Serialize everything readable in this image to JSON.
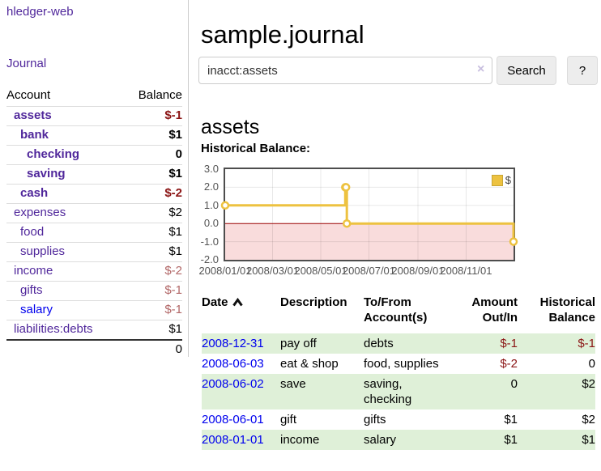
{
  "colors": {
    "link_purple": "#50279b",
    "link_blue": "#0000ee",
    "negative_strong": "#8b1515",
    "negative_muted": "#b26767",
    "row_stripe_green": "#dff0d8",
    "chart_gold": "#EDC240"
  },
  "sidebar": {
    "brand": "hledger-web",
    "nav_journal": "Journal",
    "accounts_table": {
      "headers": {
        "account": "Account",
        "balance": "Balance"
      },
      "rows": [
        {
          "name": "assets",
          "depth": 1,
          "bold": true,
          "balance": "$-1",
          "negative": "strong"
        },
        {
          "name": "bank",
          "depth": 2,
          "bold": true,
          "balance": "$1"
        },
        {
          "name": "checking",
          "depth": 3,
          "bold": true,
          "balance": "0"
        },
        {
          "name": "saving",
          "depth": 3,
          "bold": true,
          "balance": "$1"
        },
        {
          "name": "cash",
          "depth": 2,
          "bold": true,
          "balance": "$-2",
          "negative": "strong"
        },
        {
          "name": "expenses",
          "depth": 1,
          "bold": false,
          "balance": "$2"
        },
        {
          "name": "food",
          "depth": 2,
          "bold": false,
          "balance": "$1"
        },
        {
          "name": "supplies",
          "depth": 2,
          "bold": false,
          "balance": "$1"
        },
        {
          "name": "income",
          "depth": 1,
          "bold": false,
          "balance": "$-2",
          "negative": "muted"
        },
        {
          "name": "gifts",
          "depth": 2,
          "bold": false,
          "balance": "$-1",
          "negative": "muted"
        },
        {
          "name": "salary",
          "depth": 2,
          "bold": false,
          "balance": "$-1",
          "negative": "muted",
          "unvisited": true
        },
        {
          "name": "liabilities:debts",
          "depth": 1,
          "bold": false,
          "balance": "$1"
        }
      ],
      "total": "0"
    }
  },
  "header": {
    "title": "sample.journal"
  },
  "search": {
    "value": "inacct:assets",
    "clear_icon": "×",
    "button_label": "Search",
    "help_label": "?"
  },
  "register": {
    "heading": "assets",
    "chart_label": "Historical Balance:",
    "table": {
      "headers": {
        "date": "Date",
        "description": "Description",
        "accounts": "To/From Account(s)",
        "amount": "Amount Out/In",
        "balance": "Historical Balance"
      },
      "rows": [
        {
          "date": "2008-12-31",
          "description": "pay off",
          "accounts": "debts",
          "amount": "$-1",
          "amount_negative": true,
          "balance": "$-1",
          "balance_negative": true
        },
        {
          "date": "2008-06-03",
          "description": "eat & shop",
          "accounts": "food, supplies",
          "amount": "$-2",
          "amount_negative": true,
          "balance": "0",
          "balance_negative": false
        },
        {
          "date": "2008-06-02",
          "description": "save",
          "accounts": "saving, checking",
          "amount": "0",
          "amount_negative": false,
          "balance": "$2",
          "balance_negative": false
        },
        {
          "date": "2008-06-01",
          "description": "gift",
          "accounts": "gifts",
          "amount": "$1",
          "amount_negative": false,
          "balance": "$2",
          "balance_negative": false
        },
        {
          "date": "2008-01-01",
          "description": "income",
          "accounts": "salary",
          "amount": "$1",
          "amount_negative": false,
          "balance": "$1",
          "balance_negative": false
        }
      ]
    }
  },
  "chart_data": {
    "type": "line",
    "step": true,
    "title": "Historical Balance",
    "series": [
      {
        "name": "$",
        "color": "#EDC240",
        "points": [
          [
            "2008-01-01",
            1
          ],
          [
            "2008-06-01",
            2
          ],
          [
            "2008-06-02",
            2
          ],
          [
            "2008-06-03",
            0
          ],
          [
            "2008-12-31",
            -1
          ]
        ]
      }
    ],
    "xlim": [
      "2008-01-01",
      "2008-12-31"
    ],
    "ylim": [
      -2,
      3
    ],
    "y_ticks": [
      {
        "value": 3,
        "label": "3.0"
      },
      {
        "value": 2,
        "label": "2.0"
      },
      {
        "value": 1,
        "label": "1.0"
      },
      {
        "value": 0,
        "label": "0.0"
      },
      {
        "value": -1,
        "label": "-1.0"
      },
      {
        "value": -2,
        "label": "-2.0"
      }
    ],
    "x_ticks": [
      {
        "date": "2008-01-01",
        "label": "2008/01/01"
      },
      {
        "date": "2008-03-01",
        "label": "2008/03/01"
      },
      {
        "date": "2008-05-01",
        "label": "2008/05/01"
      },
      {
        "date": "2008-07-01",
        "label": "2008/07/01"
      },
      {
        "date": "2008-09-01",
        "label": "2008/09/01"
      },
      {
        "date": "2008-11-01",
        "label": "2008/11/01"
      }
    ],
    "grid": true,
    "legend_position": "top-right",
    "negative_region_color": "#f9dcdc",
    "zero_line_color": "#9b0000"
  }
}
